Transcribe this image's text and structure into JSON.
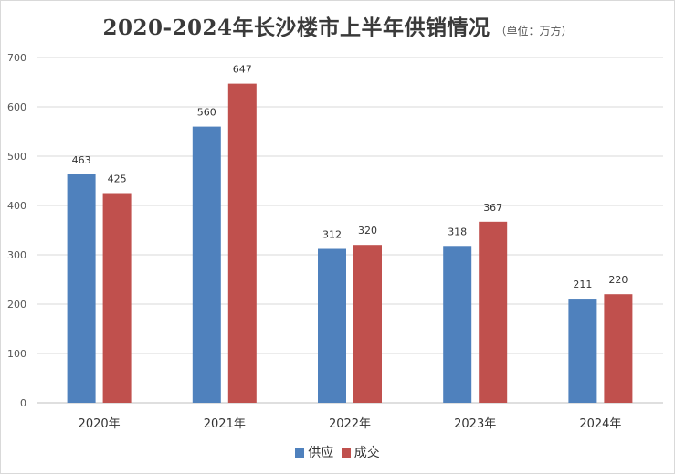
{
  "chart_data": {
    "type": "bar",
    "title": "2020-2024年长沙楼市上半年供销情况",
    "subtitle": "（单位：万方）",
    "categories": [
      "2020年",
      "2021年",
      "2022年",
      "2023年",
      "2024年"
    ],
    "series": [
      {
        "name": "供应",
        "values": [
          463,
          560,
          312,
          318,
          211
        ],
        "color": "#4f81bd"
      },
      {
        "name": "成交",
        "values": [
          425,
          647,
          320,
          367,
          220
        ],
        "color": "#c0504d"
      }
    ],
    "ylim": [
      0,
      700
    ],
    "yticks": [
      0,
      100,
      200,
      300,
      400,
      500,
      600,
      700
    ],
    "grid": true,
    "legend_position": "bottom"
  }
}
